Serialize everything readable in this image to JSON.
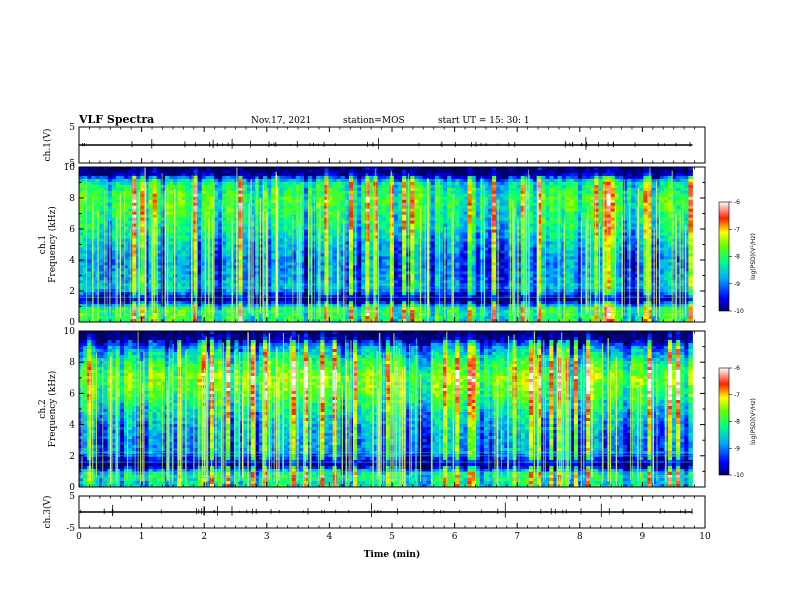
{
  "header": {
    "title": "VLF Spectra",
    "date": "Nov.17, 2021",
    "station": "station=MOS",
    "start": "start  UT =   15: 30: 1"
  },
  "chart_data": [
    {
      "type": "line",
      "panel": "ch1-waveform",
      "ylabel": "ch.1(V)",
      "ylim": [
        -5,
        5
      ],
      "yticks": [
        "5",
        "-5"
      ],
      "xlim": [
        0,
        10
      ],
      "series": [
        {
          "x": [
            0,
            9.8
          ],
          "y": [
            0,
            0
          ]
        }
      ]
    },
    {
      "type": "heatmap",
      "panel": "ch1-spectrogram",
      "ylabel": "ch.1\nFrequency (kHz)",
      "ylim": [
        0,
        10
      ],
      "yticks": [
        "0",
        "2",
        "4",
        "6",
        "8",
        "10"
      ],
      "xlim": [
        0,
        10
      ],
      "data_end_min": 9.8,
      "colorbar": {
        "min": -10,
        "max": -6,
        "ticks": [
          "-6",
          "-7",
          "-8",
          "-9",
          "-10"
        ],
        "label": "log(PSD)(V²/Hz)"
      },
      "band_profile": [
        {
          "f": 0.2,
          "level": -8.0
        },
        {
          "f": 0.8,
          "level": -7.8
        },
        {
          "f": 1.4,
          "level": -9.9
        },
        {
          "f": 2.2,
          "level": -8.6
        },
        {
          "f": 3.0,
          "level": -8.8
        },
        {
          "f": 4.0,
          "level": -8.9
        },
        {
          "f": 5.0,
          "level": -8.6
        },
        {
          "f": 6.0,
          "level": -8.2
        },
        {
          "f": 7.0,
          "level": -8.0
        },
        {
          "f": 8.0,
          "level": -7.8
        },
        {
          "f": 9.0,
          "level": -8.2
        },
        {
          "f": 9.6,
          "level": -10.0
        }
      ]
    },
    {
      "type": "heatmap",
      "panel": "ch2-spectrogram",
      "ylabel": "ch.2\nFrequency (kHz)",
      "ylim": [
        0,
        10
      ],
      "yticks": [
        "0",
        "2",
        "4",
        "6",
        "8",
        "10"
      ],
      "xlim": [
        0,
        10
      ],
      "data_end_min": 9.8,
      "colorbar": {
        "min": -10,
        "max": -6,
        "ticks": [
          "-6",
          "-7",
          "-8",
          "-9",
          "-10"
        ],
        "label": "log(PSD)(V²/Hz)"
      },
      "band_profile": [
        {
          "f": 0.2,
          "level": -8.2
        },
        {
          "f": 0.8,
          "level": -8.0
        },
        {
          "f": 1.4,
          "level": -9.9
        },
        {
          "f": 2.2,
          "level": -8.8
        },
        {
          "f": 3.0,
          "level": -8.8
        },
        {
          "f": 4.0,
          "level": -8.6
        },
        {
          "f": 5.0,
          "level": -8.2
        },
        {
          "f": 6.0,
          "level": -7.7
        },
        {
          "f": 7.0,
          "level": -7.4
        },
        {
          "f": 8.0,
          "level": -7.9
        },
        {
          "f": 9.0,
          "level": -8.8
        },
        {
          "f": 9.6,
          "level": -10.0
        }
      ]
    },
    {
      "type": "line",
      "panel": "ch3-waveform",
      "ylabel": "ch.3(V)",
      "ylim": [
        -5,
        5
      ],
      "yticks": [
        "5",
        "-5"
      ],
      "xlim": [
        0,
        10
      ],
      "xlabel": "Time  (min)",
      "xticks": [
        "0",
        "1",
        "2",
        "3",
        "4",
        "5",
        "6",
        "7",
        "8",
        "9",
        "10"
      ],
      "series": [
        {
          "x": [
            0,
            9.8
          ],
          "y": [
            0,
            0
          ]
        }
      ]
    }
  ]
}
